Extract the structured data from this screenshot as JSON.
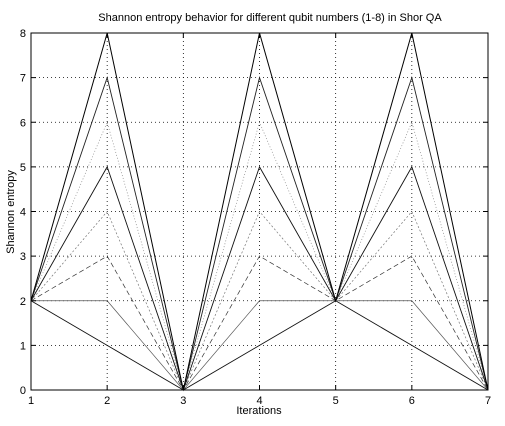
{
  "chart_data": {
    "type": "line",
    "title": "Shannon entropy behavior for different qubit numbers (1-8) in Shor QA",
    "xlabel": "Iterations",
    "ylabel": "Shannon entropy",
    "x": [
      1,
      2,
      3,
      4,
      5,
      6,
      7
    ],
    "xlim": [
      1,
      7
    ],
    "ylim": [
      0,
      8
    ],
    "xticks": [
      "1",
      "2",
      "3",
      "4",
      "5",
      "6",
      "7"
    ],
    "yticks": [
      "0",
      "1",
      "2",
      "3",
      "4",
      "5",
      "6",
      "7",
      "8"
    ],
    "grid": "dotted",
    "series": [
      {
        "values": [
          2,
          1,
          0,
          1,
          2,
          1,
          0
        ]
      },
      {
        "values": [
          2,
          2,
          0,
          2,
          2,
          2,
          0
        ]
      },
      {
        "values": [
          2,
          3,
          0,
          3,
          2,
          3,
          0
        ]
      },
      {
        "values": [
          2,
          4,
          0,
          4,
          2,
          4,
          0
        ]
      },
      {
        "values": [
          2,
          5,
          0,
          5,
          2,
          5,
          0
        ]
      },
      {
        "values": [
          2,
          6,
          0,
          6,
          2,
          6,
          0
        ]
      },
      {
        "values": [
          2,
          7,
          0,
          7,
          2,
          7,
          0
        ]
      },
      {
        "values": [
          2,
          8,
          0,
          8,
          2,
          8,
          0
        ]
      }
    ]
  }
}
